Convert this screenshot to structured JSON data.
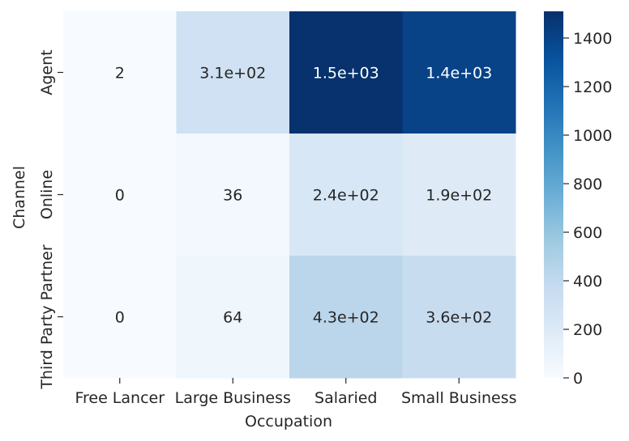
{
  "chart_data": {
    "type": "heatmap",
    "title": "",
    "xlabel": "Occupation",
    "ylabel": "Channel",
    "x_categories": [
      "Free Lancer",
      "Large Business",
      "Salaried",
      "Small Business"
    ],
    "y_categories": [
      "Agent",
      "Online",
      "Third Party Partner"
    ],
    "values": [
      [
        2,
        310,
        1500,
        1400
      ],
      [
        0,
        36,
        240,
        190
      ],
      [
        0,
        64,
        430,
        360
      ]
    ],
    "annotations": [
      [
        "2",
        "3.1e+02",
        "1.5e+03",
        "1.4e+03"
      ],
      [
        "0",
        "36",
        "2.4e+02",
        "1.9e+02"
      ],
      [
        "0",
        "64",
        "4.3e+02",
        "3.6e+02"
      ]
    ],
    "colormap": "Blues",
    "colorbar": {
      "vmin": 0,
      "vmax": 1510,
      "ticks": [
        0,
        200,
        400,
        600,
        800,
        1000,
        1200,
        1400
      ],
      "tick_labels": [
        "0",
        "200",
        "400",
        "600",
        "800",
        "1000",
        "1200",
        "1400"
      ]
    }
  }
}
